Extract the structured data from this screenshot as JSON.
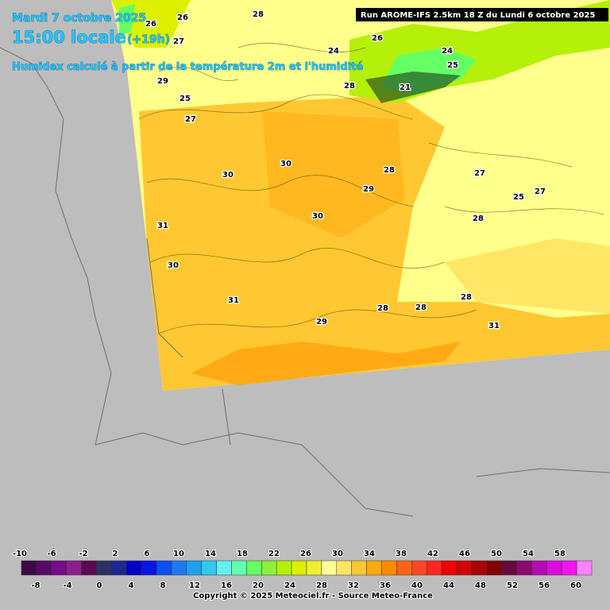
{
  "header": {
    "date": "Mardi 7 octobre 2025",
    "time": "15:00 locale",
    "lead": "(+19h)",
    "subtitle": "Humidex calculé à partir de la température 2m et l'humidité",
    "run": "Run AROME-IFS 2.5km 18 Z du Lundi 6 octobre 2025"
  },
  "contour_labels": [
    "28",
    "26",
    "27",
    "26",
    "26",
    "24",
    "24",
    "28",
    "21",
    "25",
    "29",
    "25",
    "27",
    "30",
    "30",
    "28",
    "29",
    "30",
    "27",
    "27",
    "25",
    "28",
    "31",
    "30",
    "31",
    "28",
    "28",
    "28",
    "29",
    "31"
  ],
  "legend": {
    "top_labels": [
      -10,
      -6,
      -2,
      2,
      6,
      10,
      14,
      18,
      22,
      26,
      30,
      34,
      38,
      42,
      46,
      50,
      54,
      58
    ],
    "bottom_labels": [
      -8,
      -4,
      0,
      4,
      8,
      12,
      16,
      20,
      24,
      28,
      32,
      36,
      40,
      44,
      48,
      52,
      56,
      60
    ],
    "colors": [
      "#3d0a46",
      "#550a64",
      "#780a8c",
      "#8c1e8c",
      "#5a0a50",
      "#2d3264",
      "#1e288c",
      "#0000c8",
      "#0a14e6",
      "#0a50f0",
      "#1e78f0",
      "#1ea0f0",
      "#32c8f0",
      "#64f0f0",
      "#64ffb4",
      "#64ff64",
      "#8cf03c",
      "#b4f00a",
      "#dcf000",
      "#f0f032",
      "#ffff96",
      "#ffe664",
      "#ffc832",
      "#ffaa14",
      "#ff8c00",
      "#ff6414",
      "#ff4628",
      "#ff281e",
      "#f00000",
      "#d20000",
      "#aa0000",
      "#820000",
      "#640a3c",
      "#8c0a6e",
      "#b40ab4",
      "#dc0adc",
      "#f014f0",
      "#ff82ff"
    ]
  },
  "footer": "Copyright © 2025 Meteociel.fr - Source Meteo-France"
}
